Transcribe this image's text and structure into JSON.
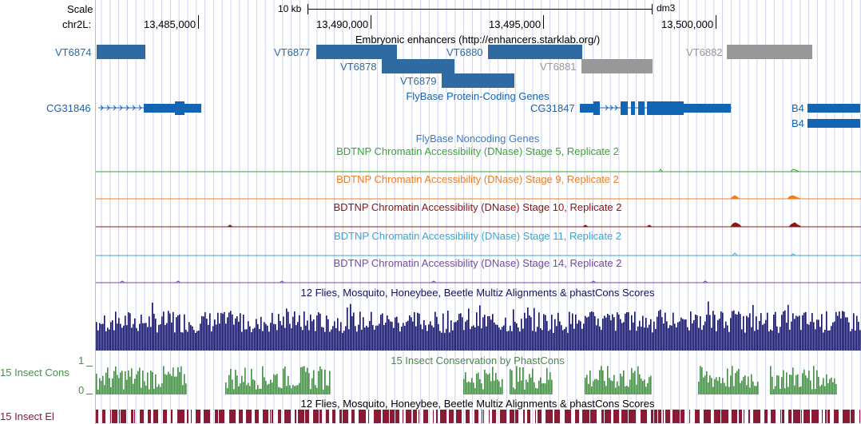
{
  "header": {
    "scale_label": "Scale",
    "chrom_label": "chr2L:",
    "scale_bar_text": "10 kb",
    "assembly": "dm3",
    "positions": [
      "13,485,000",
      "13,490,000",
      "13,495,000",
      "13,500,000"
    ]
  },
  "tracks": {
    "enhancers": {
      "title": "Embryonic enhancers (http://enhancers.starklab.org/)",
      "items": [
        {
          "label": "VT6874",
          "active": true
        },
        {
          "label": "VT6877",
          "active": true
        },
        {
          "label": "VT6878",
          "active": true
        },
        {
          "label": "VT6879",
          "active": true
        },
        {
          "label": "VT6880",
          "active": true
        },
        {
          "label": "VT6881",
          "active": false
        },
        {
          "label": "VT6882",
          "active": false
        }
      ]
    },
    "protein_genes": {
      "title": "FlyBase Protein-Coding Genes",
      "genes": [
        "CG31846",
        "CG31847",
        "B4",
        "B4"
      ]
    },
    "noncoding": {
      "title": "FlyBase Noncoding Genes"
    },
    "dnase": [
      {
        "title": "BDTNP Chromatin Accessibility (DNase) Stage 5, Replicate 2",
        "color": "#3aa33a"
      },
      {
        "title": "BDTNP Chromatin Accessibility (DNase) Stage 9, Replicate 2",
        "color": "#f07e1e"
      },
      {
        "title": "BDTNP Chromatin Accessibility (DNase) Stage 10, Replicate 2",
        "color": "#8b1414"
      },
      {
        "title": "BDTNP Chromatin Accessibility (DNase) Stage 11, Replicate 2",
        "color": "#3aa6d6"
      },
      {
        "title": "BDTNP Chromatin Accessibility (DNase) Stage 14, Replicate 2",
        "color": "#7848a8"
      }
    ],
    "multiz": {
      "title": "12 Flies, Mosquito, Honeybee, Beetle Multiz Alignments & phastCons Scores",
      "color": "#13135e"
    },
    "insect_cons": {
      "title": "15 Insect Conservation by PhastCons",
      "side_label": "15 Insect Cons",
      "axis_max": "1",
      "axis_min": "0",
      "color": "#4a8a4a"
    },
    "insect_el": {
      "title": "12 Flies, Mosquito, Honeybee, Beetle Multiz Alignments & phastCons Scores",
      "side_label": "15 Insect El",
      "color": "#8b1a35"
    }
  },
  "colors": {
    "enhancer": "#2f6aa3",
    "enhancer_inactive": "#999999",
    "gene": "#1464b4",
    "grid": "#cdd3f0"
  }
}
